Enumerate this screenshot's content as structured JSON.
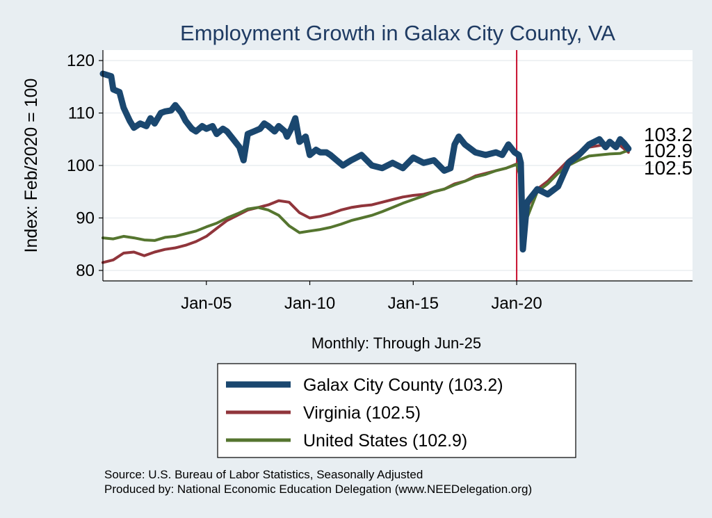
{
  "chart_data": {
    "type": "line",
    "title": "Employment Growth in Galax City  County, VA",
    "ylabel": "Index: Feb/2020 = 100",
    "xlabel": "Monthly: Through Jun-25",
    "ylim": [
      78,
      122
    ],
    "xlim": [
      2000.0,
      2028.5
    ],
    "y_ticks": [
      80,
      90,
      100,
      110,
      120
    ],
    "x_ticks": [
      {
        "value": 2005.0,
        "label": "Jan-05"
      },
      {
        "value": 2010.0,
        "label": "Jan-10"
      },
      {
        "value": 2015.0,
        "label": "Jan-15"
      },
      {
        "value": 2020.0,
        "label": "Jan-20"
      }
    ],
    "reference_line": {
      "x": 2020.0,
      "color": "#c8102e"
    },
    "grid": true,
    "legend_position": "bottom",
    "end_labels": [
      "103.2",
      "102.9",
      "102.5"
    ],
    "series": [
      {
        "name": "Galax City  County (103.2)",
        "color": "#1a476f",
        "line_width": 9,
        "x": [
          2000.0,
          2000.4,
          2000.5,
          2000.8,
          2001.0,
          2001.3,
          2001.5,
          2001.8,
          2002.1,
          2002.3,
          2002.5,
          2002.8,
          2003.0,
          2003.3,
          2003.5,
          2003.8,
          2004.0,
          2004.3,
          2004.5,
          2004.8,
          2005.0,
          2005.3,
          2005.5,
          2005.8,
          2006.0,
          2006.3,
          2006.6,
          2006.8,
          2007.0,
          2007.3,
          2007.6,
          2007.8,
          2008.0,
          2008.3,
          2008.5,
          2008.8,
          2008.9,
          2009.1,
          2009.3,
          2009.5,
          2009.8,
          2010.0,
          2010.3,
          2010.5,
          2010.8,
          2011.0,
          2011.3,
          2011.6,
          2011.8,
          2012.0,
          2012.5,
          2013.0,
          2013.5,
          2014.0,
          2014.5,
          2015.0,
          2015.5,
          2016.0,
          2016.5,
          2016.8,
          2017.0,
          2017.2,
          2017.5,
          2018.0,
          2018.5,
          2019.0,
          2019.3,
          2019.6,
          2019.9,
          2020.1,
          2020.2,
          2020.3,
          2020.5,
          2020.8,
          2021.0,
          2021.5,
          2022.0,
          2022.5,
          2023.0,
          2023.5,
          2024.0,
          2024.3,
          2024.5,
          2024.8,
          2025.0,
          2025.2,
          2025.4
        ],
        "y": [
          117.5,
          117.0,
          114.5,
          114.0,
          111.0,
          108.5,
          107.2,
          108.0,
          107.5,
          109.0,
          108.0,
          110.0,
          110.3,
          110.5,
          111.5,
          110.0,
          108.5,
          107.0,
          106.5,
          107.5,
          107.0,
          107.5,
          106.0,
          107.0,
          106.5,
          105.0,
          103.5,
          101.0,
          106.0,
          106.5,
          107.0,
          108.0,
          107.5,
          106.5,
          107.5,
          106.5,
          105.5,
          107.0,
          109.0,
          104.5,
          105.5,
          102.0,
          103.0,
          102.5,
          102.5,
          102.0,
          101.0,
          100.0,
          100.5,
          101.0,
          102.0,
          100.0,
          99.5,
          100.5,
          99.5,
          101.5,
          100.5,
          101.0,
          99.0,
          99.5,
          104.0,
          105.5,
          104.0,
          102.5,
          102.0,
          102.5,
          102.0,
          104.0,
          102.5,
          102.0,
          100.5,
          84.0,
          93.0,
          94.5,
          95.5,
          94.5,
          96.0,
          100.5,
          102.0,
          104.0,
          105.0,
          103.5,
          104.5,
          103.5,
          105.0,
          104.2,
          103.2
        ]
      },
      {
        "name": "Virginia (102.5)",
        "color": "#90353b",
        "line_width": 4,
        "x": [
          2000.0,
          2000.5,
          2001.0,
          2001.5,
          2002.0,
          2002.5,
          2003.0,
          2003.5,
          2004.0,
          2004.5,
          2005.0,
          2005.5,
          2006.0,
          2006.5,
          2007.0,
          2007.5,
          2008.0,
          2008.5,
          2009.0,
          2009.5,
          2010.0,
          2010.5,
          2011.0,
          2011.5,
          2012.0,
          2012.5,
          2013.0,
          2013.5,
          2014.0,
          2014.5,
          2015.0,
          2015.5,
          2016.0,
          2016.5,
          2017.0,
          2017.5,
          2018.0,
          2018.5,
          2019.0,
          2019.5,
          2020.0,
          2020.2,
          2020.3,
          2020.5,
          2020.8,
          2021.0,
          2021.5,
          2022.0,
          2022.5,
          2023.0,
          2023.5,
          2024.0,
          2024.5,
          2025.0,
          2025.4
        ],
        "y": [
          81.5,
          82.0,
          83.3,
          83.5,
          82.8,
          83.5,
          84.0,
          84.3,
          84.8,
          85.5,
          86.5,
          88.0,
          89.5,
          90.5,
          91.5,
          92.0,
          92.5,
          93.3,
          93.0,
          91.0,
          90.0,
          90.3,
          90.8,
          91.5,
          92.0,
          92.3,
          92.5,
          93.0,
          93.5,
          94.0,
          94.3,
          94.5,
          95.0,
          95.5,
          96.5,
          97.0,
          98.0,
          98.5,
          99.0,
          99.5,
          100.3,
          99.5,
          87.0,
          92.0,
          94.0,
          95.5,
          97.0,
          99.0,
          101.0,
          102.5,
          103.5,
          103.8,
          104.0,
          103.8,
          102.5
        ]
      },
      {
        "name": "United States (102.9)",
        "color": "#55752f",
        "line_width": 4,
        "x": [
          2000.0,
          2000.5,
          2001.0,
          2001.5,
          2002.0,
          2002.5,
          2003.0,
          2003.5,
          2004.0,
          2004.5,
          2005.0,
          2005.5,
          2006.0,
          2006.5,
          2007.0,
          2007.5,
          2008.0,
          2008.5,
          2009.0,
          2009.5,
          2010.0,
          2010.5,
          2011.0,
          2011.5,
          2012.0,
          2012.5,
          2013.0,
          2013.5,
          2014.0,
          2014.5,
          2015.0,
          2015.5,
          2016.0,
          2016.5,
          2017.0,
          2017.5,
          2018.0,
          2018.5,
          2019.0,
          2019.5,
          2020.0,
          2020.2,
          2020.3,
          2020.5,
          2020.8,
          2021.0,
          2021.5,
          2022.0,
          2022.5,
          2023.0,
          2023.5,
          2024.0,
          2024.5,
          2025.0,
          2025.4
        ],
        "y": [
          86.2,
          86.0,
          86.5,
          86.2,
          85.8,
          85.7,
          86.3,
          86.5,
          87.0,
          87.5,
          88.3,
          89.0,
          90.0,
          90.8,
          91.7,
          92.0,
          91.5,
          90.5,
          88.5,
          87.2,
          87.5,
          87.8,
          88.2,
          88.8,
          89.5,
          90.0,
          90.5,
          91.2,
          92.0,
          92.8,
          93.5,
          94.2,
          95.0,
          95.5,
          96.3,
          97.0,
          97.8,
          98.3,
          99.0,
          99.5,
          100.2,
          97.5,
          86.0,
          90.0,
          93.0,
          95.0,
          96.5,
          98.5,
          100.0,
          101.0,
          101.8,
          102.0,
          102.2,
          102.3,
          102.9
        ]
      }
    ]
  },
  "footer": {
    "source": "Source: U.S. Bureau of Labor Statistics, Seasonally Adjusted",
    "produced": "Produced by: National Economic Education Delegation (www.NEEDelegation.org)"
  }
}
